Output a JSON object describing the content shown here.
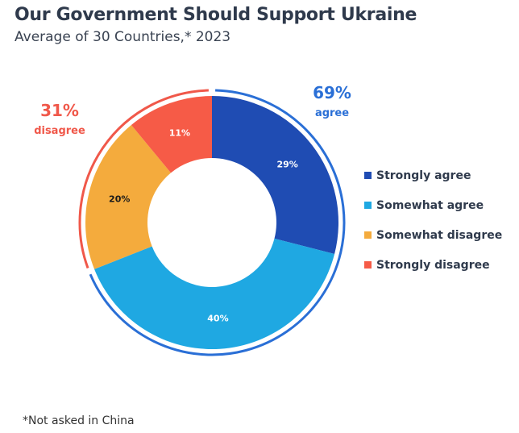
{
  "title": "Our Government Should Support Ukraine",
  "subtitle": "Average of 30 Countries,* 2023",
  "footnote": "*Not asked in China",
  "chart_data": {
    "type": "pie",
    "donut": true,
    "title": "Our Government Should Support Ukraine",
    "subtitle": "Average of 30 Countries,* 2023",
    "categories": [
      "Strongly agree",
      "Somewhat agree",
      "Somewhat disagree",
      "Strongly disagree"
    ],
    "values": [
      29,
      40,
      20,
      11
    ],
    "data_labels": [
      "29%",
      "40%",
      "20%",
      "11%"
    ],
    "colors": [
      "#1f4cb3",
      "#1fa8e2",
      "#f4ab3d",
      "#f65b47"
    ],
    "label_colors": [
      "#ffffff",
      "#ffffff",
      "#1a1a1a",
      "#ffffff"
    ],
    "legend_position": "right",
    "groups": [
      {
        "value": "69%",
        "label": "agree",
        "color": "#2a6fd6",
        "members": [
          0,
          1
        ]
      },
      {
        "value": "31%",
        "label": "disagree",
        "color": "#f0584a",
        "members": [
          2,
          3
        ]
      }
    ]
  }
}
